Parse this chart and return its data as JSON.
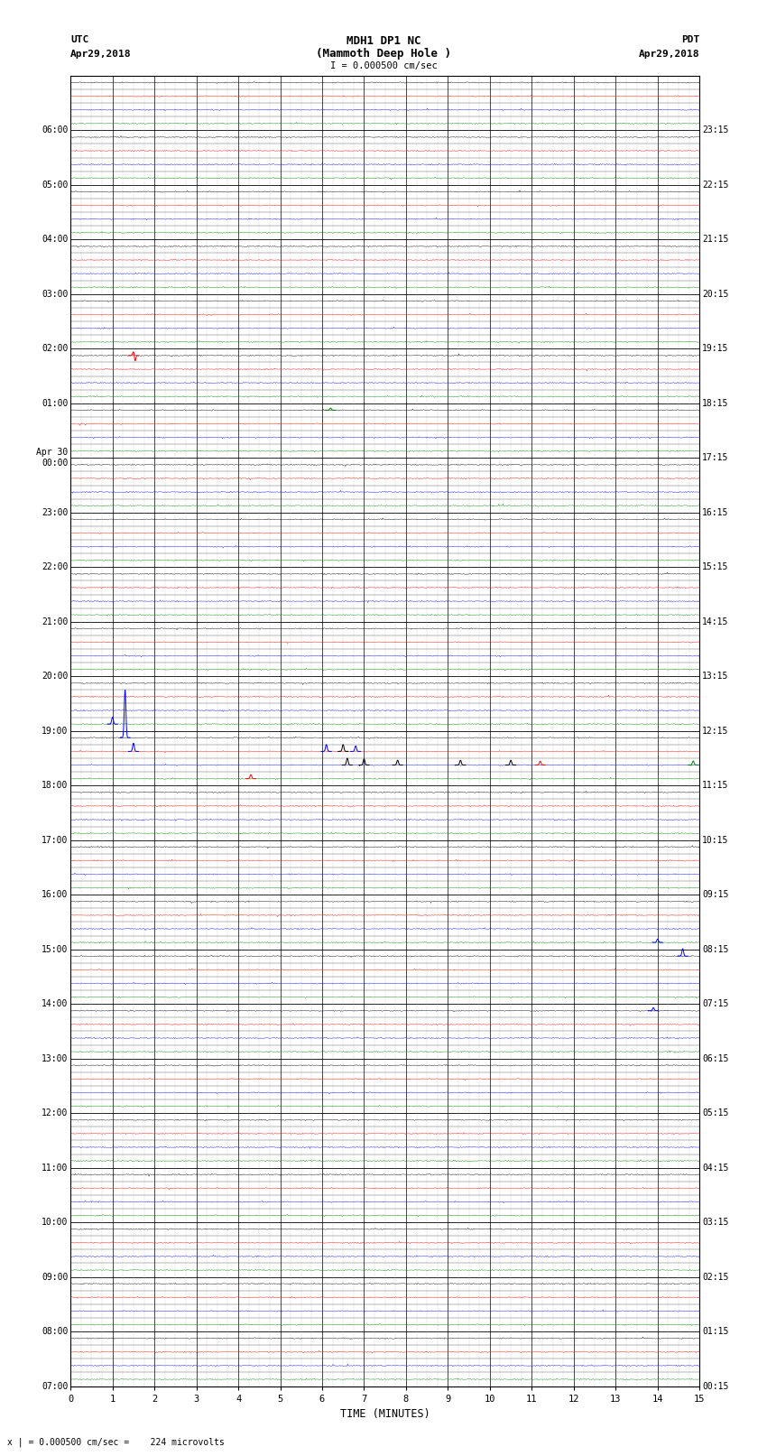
{
  "title_line1": "MDH1 DP1 NC",
  "title_line2": "(Mammoth Deep Hole )",
  "scale_label": "I = 0.000500 cm/sec",
  "left_label_top": "UTC",
  "left_label_date": "Apr29,2018",
  "right_label_top": "PDT",
  "right_label_date": "Apr29,2018",
  "bottom_label": "TIME (MINUTES)",
  "footnote": "x | = 0.000500 cm/sec =    224 microvolts",
  "utc_labels": [
    "07:00",
    "",
    "",
    "",
    "08:00",
    "",
    "",
    "",
    "09:00",
    "",
    "",
    "",
    "10:00",
    "",
    "",
    "",
    "11:00",
    "",
    "",
    "",
    "12:00",
    "",
    "",
    "",
    "13:00",
    "",
    "",
    "",
    "14:00",
    "",
    "",
    "",
    "15:00",
    "",
    "",
    "",
    "16:00",
    "",
    "",
    "",
    "17:00",
    "",
    "",
    "",
    "18:00",
    "",
    "",
    "",
    "19:00",
    "",
    "",
    "",
    "20:00",
    "",
    "",
    "",
    "21:00",
    "",
    "",
    "",
    "22:00",
    "",
    "",
    "",
    "23:00",
    "",
    "",
    "",
    "Apr 30\n00:00",
    "",
    "",
    "",
    "01:00",
    "",
    "",
    "",
    "02:00",
    "",
    "",
    "",
    "03:00",
    "",
    "",
    "",
    "04:00",
    "",
    "",
    "",
    "05:00",
    "",
    "",
    "",
    "06:00",
    "",
    "",
    ""
  ],
  "pdt_labels": [
    "00:15",
    "",
    "",
    "",
    "01:15",
    "",
    "",
    "",
    "02:15",
    "",
    "",
    "",
    "03:15",
    "",
    "",
    "",
    "04:15",
    "",
    "",
    "",
    "05:15",
    "",
    "",
    "",
    "06:15",
    "",
    "",
    "",
    "07:15",
    "",
    "",
    "",
    "08:15",
    "",
    "",
    "",
    "09:15",
    "",
    "",
    "",
    "10:15",
    "",
    "",
    "",
    "11:15",
    "",
    "",
    "",
    "12:15",
    "",
    "",
    "",
    "13:15",
    "",
    "",
    "",
    "14:15",
    "",
    "",
    "",
    "15:15",
    "",
    "",
    "",
    "16:15",
    "",
    "",
    "",
    "17:15",
    "",
    "",
    "",
    "18:15",
    "",
    "",
    "",
    "19:15",
    "",
    "",
    "",
    "20:15",
    "",
    "",
    "",
    "21:15",
    "",
    "",
    "",
    "22:15",
    "",
    "",
    "",
    "23:15",
    "",
    "",
    ""
  ],
  "row_colors": [
    "black",
    "red",
    "blue",
    "green"
  ],
  "num_rows": 96,
  "x_ticks": [
    0,
    1,
    2,
    3,
    4,
    5,
    6,
    7,
    8,
    9,
    10,
    11,
    12,
    13,
    14,
    15
  ],
  "bg_color": "#ffffff",
  "grid_color": "#000000",
  "minor_grid_color": "#aaaaaa",
  "noise_amp": 0.018,
  "spike_events": [
    {
      "row": 20,
      "x": 1.5,
      "amp": 0.28,
      "color": "red",
      "neg": true
    },
    {
      "row": 24,
      "x": 6.2,
      "amp": 0.15,
      "color": "green",
      "neg": false
    },
    {
      "row": 47,
      "x": 1.0,
      "amp": 0.5,
      "color": "blue",
      "neg": false
    },
    {
      "row": 48,
      "x": 1.3,
      "amp": 3.5,
      "color": "blue",
      "neg": false
    },
    {
      "row": 49,
      "x": 1.5,
      "amp": 0.6,
      "color": "blue",
      "neg": false
    },
    {
      "row": 49,
      "x": 6.1,
      "amp": 0.5,
      "color": "blue",
      "neg": false
    },
    {
      "row": 49,
      "x": 6.8,
      "amp": 0.4,
      "color": "blue",
      "neg": false
    },
    {
      "row": 49,
      "x": 6.5,
      "amp": 0.5,
      "color": "black",
      "neg": false
    },
    {
      "row": 50,
      "x": 6.6,
      "amp": 0.5,
      "color": "black",
      "neg": false
    },
    {
      "row": 50,
      "x": 7.0,
      "amp": 0.45,
      "color": "black",
      "neg": false
    },
    {
      "row": 50,
      "x": 7.8,
      "amp": 0.35,
      "color": "black",
      "neg": false
    },
    {
      "row": 50,
      "x": 9.3,
      "amp": 0.35,
      "color": "black",
      "neg": false
    },
    {
      "row": 50,
      "x": 10.5,
      "amp": 0.35,
      "color": "black",
      "neg": false
    },
    {
      "row": 50,
      "x": 14.85,
      "amp": 0.3,
      "color": "green",
      "neg": false
    },
    {
      "row": 50,
      "x": 11.2,
      "amp": 0.28,
      "color": "red",
      "neg": false
    },
    {
      "row": 51,
      "x": 4.3,
      "amp": 0.3,
      "color": "red",
      "neg": false
    },
    {
      "row": 63,
      "x": 14.0,
      "amp": 0.25,
      "color": "blue",
      "neg": false
    },
    {
      "row": 64,
      "x": 14.6,
      "amp": 0.55,
      "color": "blue",
      "neg": false
    },
    {
      "row": 68,
      "x": 13.9,
      "amp": 0.22,
      "color": "blue",
      "neg": false
    }
  ]
}
